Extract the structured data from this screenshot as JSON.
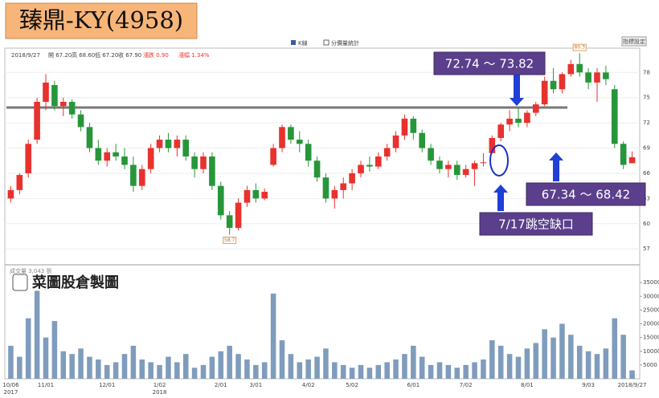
{
  "header": {
    "title": "臻鼎-KY(4958)",
    "legend": [
      "K線",
      "分價量統計"
    ],
    "button": "指標設定",
    "info": [
      "2018/9/27",
      "開 67.20",
      "高 68.60",
      "低 67.20",
      "收 67.90"
    ],
    "info_change": [
      "漲跌 0.90",
      "漲幅 1.34%"
    ],
    "volume_caption": "成交量 3,043 張",
    "watermark": "菜圖股倉製圖"
  },
  "chart_data": {
    "type": "candlestick",
    "categories": [
      "10/06",
      null,
      null,
      null,
      "11/01",
      null,
      null,
      null,
      null,
      null,
      null,
      "12/01",
      null,
      null,
      null,
      null,
      null,
      "1/02",
      null,
      null,
      null,
      null,
      null,
      null,
      "2/01",
      null,
      null,
      null,
      "3/01",
      null,
      null,
      null,
      null,
      null,
      "4/02",
      null,
      null,
      null,
      null,
      "5/02",
      null,
      null,
      null,
      null,
      null,
      null,
      "6/01",
      null,
      null,
      null,
      null,
      null,
      "7/02",
      null,
      null,
      null,
      null,
      null,
      null,
      "8/01",
      null,
      null,
      null,
      null,
      null,
      null,
      "9/03",
      null,
      null,
      null,
      null,
      "2018/9/27"
    ],
    "year_labels": [
      {
        "at": "10/06",
        "label": "2017"
      },
      {
        "at": "1/02",
        "label": "2018"
      }
    ],
    "ohlc": [
      [
        63,
        64.5,
        62.5,
        64
      ],
      [
        64,
        66,
        63.5,
        65.8
      ],
      [
        66,
        70,
        65.5,
        69.5
      ],
      [
        70,
        75,
        69.5,
        74.5
      ],
      [
        74.5,
        77.8,
        73.5,
        76.8
      ],
      [
        76.5,
        77,
        73.5,
        74
      ],
      [
        74,
        75,
        72.8,
        74.5
      ],
      [
        74.5,
        74.8,
        72.5,
        73
      ],
      [
        73,
        73.5,
        71,
        71.5
      ],
      [
        71.5,
        72,
        68.5,
        69
      ],
      [
        69,
        70,
        67,
        67.5
      ],
      [
        67.5,
        69,
        66.8,
        68.5
      ],
      [
        68.5,
        69.5,
        67.5,
        68
      ],
      [
        68,
        69,
        66.5,
        67
      ],
      [
        67,
        68,
        63.8,
        64.5
      ],
      [
        64.5,
        67,
        64,
        66.5
      ],
      [
        66.5,
        69.5,
        66,
        69
      ],
      [
        69,
        70.5,
        68.5,
        70
      ],
      [
        70,
        70.8,
        68.5,
        69
      ],
      [
        69,
        70.5,
        68,
        70
      ],
      [
        70,
        70.5,
        67.5,
        68
      ],
      [
        68,
        68.5,
        65.5,
        66.5
      ],
      [
        66.5,
        68.5,
        66,
        68
      ],
      [
        68,
        68.5,
        64,
        64.5
      ],
      [
        64.5,
        65,
        60.5,
        61
      ],
      [
        61,
        61.5,
        58.7,
        59.5
      ],
      [
        59.5,
        63,
        59.2,
        62.5
      ],
      [
        62.5,
        64.5,
        62,
        64
      ],
      [
        64,
        64.8,
        62.5,
        63
      ],
      [
        63,
        64.2,
        62.8,
        63.8
      ],
      [
        67,
        69.5,
        66.8,
        69
      ],
      [
        69,
        71.8,
        68.5,
        71.5
      ],
      [
        71.5,
        71.8,
        69.5,
        70
      ],
      [
        70,
        71,
        68.5,
        69.5
      ],
      [
        69.5,
        70,
        66.8,
        67.5
      ],
      [
        67.5,
        68,
        65,
        65.5
      ],
      [
        65.5,
        66,
        62.5,
        63
      ],
      [
        63,
        64.5,
        61.8,
        64
      ],
      [
        64,
        65.5,
        63,
        64.8
      ],
      [
        64.8,
        66.5,
        64,
        66
      ],
      [
        66,
        67.5,
        65.5,
        67
      ],
      [
        67,
        68,
        66.2,
        66.8
      ],
      [
        66.8,
        68.5,
        66.5,
        68
      ],
      [
        68,
        69.5,
        67.5,
        69
      ],
      [
        69,
        71,
        68.5,
        70.5
      ],
      [
        70.5,
        73,
        70,
        72.5
      ],
      [
        72.5,
        72.8,
        70,
        70.8
      ],
      [
        70.8,
        71.2,
        68.5,
        69
      ],
      [
        69,
        69.5,
        67,
        67.5
      ],
      [
        67.5,
        68,
        66,
        66.5
      ],
      [
        66.5,
        67.5,
        65.5,
        67
      ],
      [
        67,
        67.5,
        65.2,
        65.8
      ],
      [
        65.8,
        67,
        65.5,
        66.5
      ],
      [
        66.5,
        67.5,
        64.5,
        67.2
      ],
      [
        67.2,
        68.4,
        66.8,
        67.3
      ],
      [
        68.4,
        70.5,
        68.4,
        70.2
      ],
      [
        70.2,
        72,
        69.8,
        71.8
      ],
      [
        71.8,
        73.5,
        71,
        72.5
      ],
      [
        72.5,
        73.8,
        71.5,
        72
      ],
      [
        72,
        73.5,
        71.5,
        73.2
      ],
      [
        73.2,
        74.5,
        72.8,
        74.2
      ],
      [
        74.2,
        77.5,
        74,
        77
      ],
      [
        77,
        78.5,
        75.5,
        76
      ],
      [
        76,
        78,
        75.5,
        77.8
      ],
      [
        77.8,
        79.5,
        77.5,
        79
      ],
      [
        79,
        80.3,
        77.5,
        78
      ],
      [
        78,
        78.5,
        76,
        76.8
      ],
      [
        76.8,
        78.5,
        74.5,
        78
      ],
      [
        78,
        78.8,
        76.5,
        77.2
      ],
      [
        76,
        76.5,
        69,
        69.5
      ],
      [
        69.5,
        69.8,
        66.5,
        67
      ],
      [
        67.2,
        68.6,
        67.2,
        67.9
      ]
    ],
    "volume": [
      12000,
      8000,
      22000,
      32000,
      15000,
      21000,
      10000,
      9000,
      11000,
      8000,
      7000,
      5000,
      6000,
      9000,
      12000,
      7000,
      6000,
      5000,
      8000,
      6000,
      9000,
      4000,
      5000,
      8000,
      10000,
      12000,
      9000,
      7000,
      5000,
      6000,
      31000,
      14000,
      9000,
      6000,
      7000,
      8000,
      11000,
      6000,
      5000,
      4000,
      5000,
      4000,
      5000,
      6000,
      7000,
      9000,
      12000,
      8000,
      5000,
      6000,
      5000,
      4000,
      5000,
      6000,
      7000,
      14000,
      12000,
      9000,
      8000,
      11000,
      13000,
      18000,
      15000,
      20000,
      16000,
      12000,
      10000,
      9000,
      11000,
      22000,
      16000,
      3043
    ],
    "up_color": "#e8322e",
    "down_color": "#27963a",
    "volume_color": "#7f9cbc",
    "ylim": [
      55.3,
      80.7
    ],
    "yticks": [
      78,
      75,
      72,
      69,
      66,
      63,
      60,
      57
    ],
    "volume_ylim": [
      0,
      40000
    ],
    "volume_ticks": [
      35000,
      30000,
      25000,
      20000,
      15000,
      10000,
      5000
    ],
    "extremes": [
      80.3,
      58.7
    ],
    "reference_line": 73.82,
    "annotations": [
      "72.74 ～ 73.82",
      "67.34 ～ 68.42",
      "7/17跳空缺口"
    ]
  }
}
